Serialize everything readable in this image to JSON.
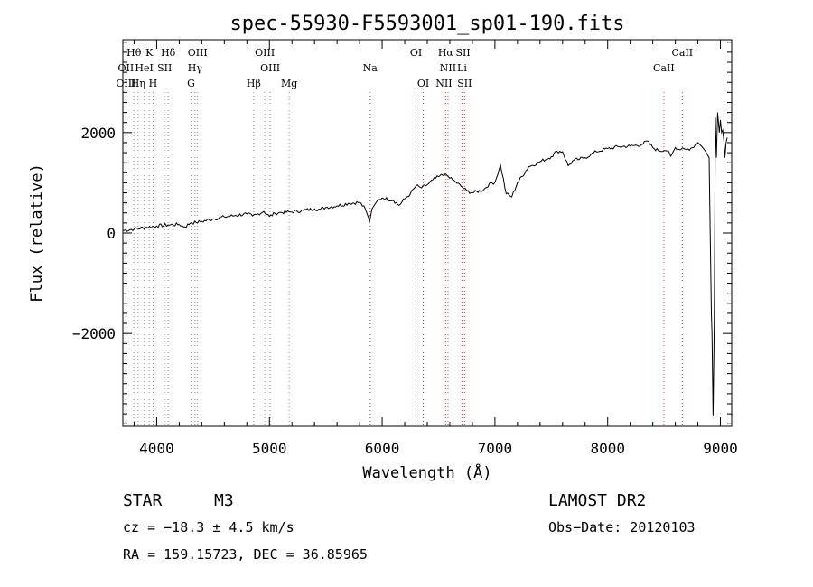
{
  "chart_data": {
    "type": "line",
    "title": "spec-55930-F5593001_sp01-190.fits",
    "xlabel": "Wavelength (Å)",
    "ylabel": "Flux (relative)",
    "xlim": [
      3700,
      9100
    ],
    "ylim": [
      -3850,
      3850
    ],
    "xticks": [
      4000,
      5000,
      6000,
      7000,
      8000,
      9000
    ],
    "xtick_labels": [
      "4000",
      "5000",
      "6000",
      "7000",
      "8000",
      "9000"
    ],
    "yticks": [
      -2000,
      0,
      2000
    ],
    "ytick_labels": [
      "−2000",
      "0",
      "2000"
    ],
    "grid": false,
    "spectrum": {
      "x": [
        3700,
        3800,
        3900,
        4000,
        4100,
        4200,
        4250,
        4300,
        4350,
        4400,
        4500,
        4600,
        4700,
        4800,
        4850,
        4900,
        4950,
        5000,
        5050,
        5100,
        5200,
        5300,
        5400,
        5450,
        5500,
        5600,
        5700,
        5800,
        5850,
        5890,
        5910,
        5950,
        6000,
        6100,
        6150,
        6200,
        6250,
        6300,
        6350,
        6400,
        6450,
        6500,
        6560,
        6600,
        6650,
        6700,
        6750,
        6800,
        6900,
        6950,
        7000,
        7050,
        7100,
        7150,
        7200,
        7300,
        7400,
        7500,
        7550,
        7600,
        7650,
        7700,
        7750,
        7800,
        7850,
        7900,
        8000,
        8100,
        8200,
        8300,
        8350,
        8400,
        8450,
        8500,
        8540,
        8560,
        8600,
        8650,
        8700,
        8750,
        8800,
        8840,
        8870,
        8900,
        8920,
        8925,
        8935,
        8945,
        8955,
        8960,
        8965,
        8975,
        8990,
        9000,
        9010,
        9020,
        9030,
        9040,
        9050,
        9060
      ],
      "y": [
        50,
        80,
        110,
        140,
        160,
        170,
        120,
        200,
        210,
        230,
        280,
        320,
        350,
        380,
        340,
        380,
        430,
        330,
        390,
        410,
        420,
        450,
        480,
        470,
        510,
        540,
        590,
        610,
        480,
        240,
        480,
        620,
        700,
        650,
        550,
        680,
        780,
        940,
        900,
        960,
        1060,
        1120,
        1180,
        1090,
        1020,
        930,
        840,
        800,
        860,
        980,
        1010,
        1350,
        780,
        720,
        1000,
        1320,
        1420,
        1520,
        1630,
        1620,
        1340,
        1450,
        1470,
        1500,
        1560,
        1620,
        1680,
        1720,
        1730,
        1760,
        1830,
        1700,
        1640,
        1640,
        1630,
        1530,
        1700,
        1660,
        1660,
        1700,
        1800,
        1710,
        1620,
        1500,
        -1600,
        -2000,
        -3650,
        -1800,
        2300,
        1900,
        1500,
        2400,
        2000,
        2250,
        2000,
        2050,
        1850,
        1500,
        1800,
        1900
      ]
    },
    "reference_lines": [
      {
        "name": "Hθ",
        "wavelength": 3798,
        "row": 1
      },
      {
        "name": "K",
        "wavelength": 3934,
        "row": 1
      },
      {
        "name": "Hδ",
        "wavelength": 4102,
        "row": 1
      },
      {
        "name": "OIII",
        "wavelength": 4363,
        "row": 1
      },
      {
        "name": "OIII",
        "wavelength": 4959,
        "row": 1
      },
      {
        "name": "OI",
        "wavelength": 6300,
        "row": 1
      },
      {
        "name": "Hα",
        "wavelength": 6563,
        "row": 1
      },
      {
        "name": "SII",
        "wavelength": 6717,
        "row": 1
      },
      {
        "name": "CaII",
        "wavelength": 8662,
        "row": 1
      },
      {
        "name": "OII",
        "wavelength": 3727,
        "row": 2
      },
      {
        "name": "HeI",
        "wavelength": 3889,
        "row": 2
      },
      {
        "name": "SII",
        "wavelength": 4070,
        "row": 2
      },
      {
        "name": "Hγ",
        "wavelength": 4340,
        "row": 2
      },
      {
        "name": "OIII",
        "wavelength": 5007,
        "row": 2
      },
      {
        "name": "Na",
        "wavelength": 5893,
        "row": 2
      },
      {
        "name": "NII",
        "wavelength": 6584,
        "row": 2
      },
      {
        "name": "Li",
        "wavelength": 6708,
        "row": 2
      },
      {
        "name": "CaII",
        "wavelength": 8498,
        "row": 2
      },
      {
        "name": "OIII",
        "wavelength": 3727,
        "row": 3
      },
      {
        "name": "Hη",
        "wavelength": 3835,
        "row": 3
      },
      {
        "name": "H",
        "wavelength": 3968,
        "row": 3
      },
      {
        "name": "G",
        "wavelength": 4305,
        "row": 3
      },
      {
        "name": "Hβ",
        "wavelength": 4861,
        "row": 3
      },
      {
        "name": "Mg",
        "wavelength": 5175,
        "row": 3
      },
      {
        "name": "OI",
        "wavelength": 6364,
        "row": 3
      },
      {
        "name": "NII",
        "wavelength": 6548,
        "row": 3
      },
      {
        "name": "SII",
        "wavelength": 6731,
        "row": 3
      }
    ],
    "line_color": "#000000",
    "reference_line_color_red": "#d05050",
    "reference_line_color_gray": "#909090"
  },
  "info": {
    "object_class": "STAR",
    "subclass": "M3",
    "survey": "LAMOST DR2",
    "redshift_text": "cz = −18.3 ± 4.5 km/s",
    "obs_date_text": "Obs−Date: 20120103",
    "coords_text": "RA = 159.15723, DEC =  36.85965"
  }
}
